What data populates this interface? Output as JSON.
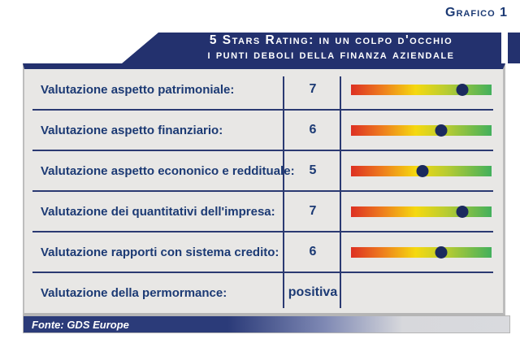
{
  "header": {
    "figure_label": "Grafico 1"
  },
  "banner": {
    "title_line1": "5 Stars Rating: in un colpo d'occhio",
    "title_line2": "i punti deboli della finanza aziendale"
  },
  "chart_data": {
    "type": "table",
    "title": "5 Stars Rating: in un colpo d'occhio i punti deboli della finanza aziendale",
    "legend_position": "none",
    "grid": "off",
    "rows": [
      {
        "label": "Valutazione aspetto patrimoniale:",
        "value": "7",
        "has_bar": true,
        "dot_percent": 79
      },
      {
        "label": "Valutazione aspetto finanziario:",
        "value": "6",
        "has_bar": true,
        "dot_percent": 64
      },
      {
        "label": "Valutazione aspetto econonico e reddituale:",
        "value": "5",
        "has_bar": true,
        "dot_percent": 51
      },
      {
        "label": "Valutazione dei quantitativi dell'impresa:",
        "value": "7",
        "has_bar": true,
        "dot_percent": 79
      },
      {
        "label": "Valutazione rapporti con sistema credito:",
        "value": "6",
        "has_bar": true,
        "dot_percent": 64
      },
      {
        "label": "Valutazione della permormance:",
        "value": "positiva",
        "has_bar": false,
        "dot_percent": null
      }
    ]
  },
  "footer": {
    "source": "Fonte: GDS Europe"
  },
  "colors": {
    "navy": "#23316e",
    "line_navy": "#2b3a72",
    "text_navy": "#1c3a74",
    "table_background": "#e8e7e5",
    "dot": "#1b2a5e",
    "bar_gradient": [
      "#dd3023",
      "#ee7c1e",
      "#f5d90f",
      "#b8cc32",
      "#43b05c"
    ],
    "footer_gradient_start": "#2b3b79",
    "footer_gradient_end": "#d9dade"
  }
}
